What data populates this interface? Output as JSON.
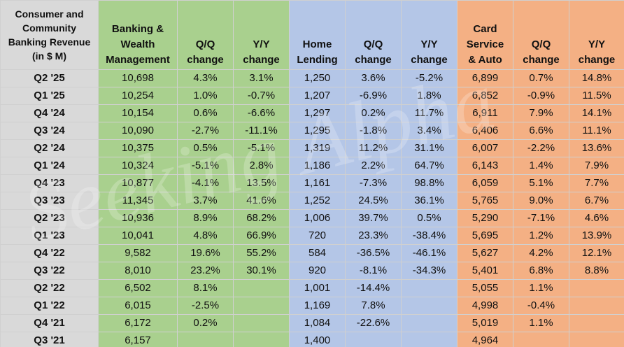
{
  "chart_data": {
    "type": "table",
    "header": {
      "label": "Consumer and Community Banking Revenue (in $ M)",
      "columns": [
        "Banking & Wealth Management",
        "Q/Q change",
        "Y/Y change",
        "Home Lending",
        "Q/Q change",
        "Y/Y change",
        "Card Service & Auto",
        "Q/Q change",
        "Y/Y change"
      ]
    },
    "rows": [
      {
        "period": "Q2 '25",
        "bwm": "10,698",
        "bwm_qq": "4.3%",
        "bwm_yy": "3.1%",
        "hl": "1,250",
        "hl_qq": "3.6%",
        "hl_yy": "-5.2%",
        "csa": "6,899",
        "csa_qq": "0.7%",
        "csa_yy": "14.8%"
      },
      {
        "period": "Q1 '25",
        "bwm": "10,254",
        "bwm_qq": "1.0%",
        "bwm_yy": "-0.7%",
        "hl": "1,207",
        "hl_qq": "-6.9%",
        "hl_yy": "1.8%",
        "csa": "6,852",
        "csa_qq": "-0.9%",
        "csa_yy": "11.5%"
      },
      {
        "period": "Q4 '24",
        "bwm": "10,154",
        "bwm_qq": "0.6%",
        "bwm_yy": "-6.6%",
        "hl": "1,297",
        "hl_qq": "0.2%",
        "hl_yy": "11.7%",
        "csa": "6,911",
        "csa_qq": "7.9%",
        "csa_yy": "14.1%"
      },
      {
        "period": "Q3 '24",
        "bwm": "10,090",
        "bwm_qq": "-2.7%",
        "bwm_yy": "-11.1%",
        "hl": "1,295",
        "hl_qq": "-1.8%",
        "hl_yy": "3.4%",
        "csa": "6,406",
        "csa_qq": "6.6%",
        "csa_yy": "11.1%"
      },
      {
        "period": "Q2 '24",
        "bwm": "10,375",
        "bwm_qq": "0.5%",
        "bwm_yy": "-5.1%",
        "hl": "1,319",
        "hl_qq": "11.2%",
        "hl_yy": "31.1%",
        "csa": "6,007",
        "csa_qq": "-2.2%",
        "csa_yy": "13.6%"
      },
      {
        "period": "Q1 '24",
        "bwm": "10,324",
        "bwm_qq": "-5.1%",
        "bwm_yy": "2.8%",
        "hl": "1,186",
        "hl_qq": "2.2%",
        "hl_yy": "64.7%",
        "csa": "6,143",
        "csa_qq": "1.4%",
        "csa_yy": "7.9%"
      },
      {
        "period": "Q4 '23",
        "bwm": "10,877",
        "bwm_qq": "-4.1%",
        "bwm_yy": "13.5%",
        "hl": "1,161",
        "hl_qq": "-7.3%",
        "hl_yy": "98.8%",
        "csa": "6,059",
        "csa_qq": "5.1%",
        "csa_yy": "7.7%"
      },
      {
        "period": "Q3 '23",
        "bwm": "11,345",
        "bwm_qq": "3.7%",
        "bwm_yy": "41.6%",
        "hl": "1,252",
        "hl_qq": "24.5%",
        "hl_yy": "36.1%",
        "csa": "5,765",
        "csa_qq": "9.0%",
        "csa_yy": "6.7%"
      },
      {
        "period": "Q2 '23",
        "bwm": "10,936",
        "bwm_qq": "8.9%",
        "bwm_yy": "68.2%",
        "hl": "1,006",
        "hl_qq": "39.7%",
        "hl_yy": "0.5%",
        "csa": "5,290",
        "csa_qq": "-7.1%",
        "csa_yy": "4.6%"
      },
      {
        "period": "Q1 '23",
        "bwm": "10,041",
        "bwm_qq": "4.8%",
        "bwm_yy": "66.9%",
        "hl": "720",
        "hl_qq": "23.3%",
        "hl_yy": "-38.4%",
        "csa": "5,695",
        "csa_qq": "1.2%",
        "csa_yy": "13.9%"
      },
      {
        "period": "Q4 '22",
        "bwm": "9,582",
        "bwm_qq": "19.6%",
        "bwm_yy": "55.2%",
        "hl": "584",
        "hl_qq": "-36.5%",
        "hl_yy": "-46.1%",
        "csa": "5,627",
        "csa_qq": "4.2%",
        "csa_yy": "12.1%"
      },
      {
        "period": "Q3 '22",
        "bwm": "8,010",
        "bwm_qq": "23.2%",
        "bwm_yy": "30.1%",
        "hl": "920",
        "hl_qq": "-8.1%",
        "hl_yy": "-34.3%",
        "csa": "5,401",
        "csa_qq": "6.8%",
        "csa_yy": "8.8%"
      },
      {
        "period": "Q2 '22",
        "bwm": "6,502",
        "bwm_qq": "8.1%",
        "bwm_yy": "",
        "hl": "1,001",
        "hl_qq": "-14.4%",
        "hl_yy": "",
        "csa": "5,055",
        "csa_qq": "1.1%",
        "csa_yy": ""
      },
      {
        "period": "Q1 '22",
        "bwm": "6,015",
        "bwm_qq": "-2.5%",
        "bwm_yy": "",
        "hl": "1,169",
        "hl_qq": "7.8%",
        "hl_yy": "",
        "csa": "4,998",
        "csa_qq": "-0.4%",
        "csa_yy": ""
      },
      {
        "period": "Q4 '21",
        "bwm": "6,172",
        "bwm_qq": "0.2%",
        "bwm_yy": "",
        "hl": "1,084",
        "hl_qq": "-22.6%",
        "hl_yy": "",
        "csa": "5,019",
        "csa_qq": "1.1%",
        "csa_yy": ""
      },
      {
        "period": "Q3 '21",
        "bwm": "6,157",
        "bwm_qq": "",
        "bwm_yy": "",
        "hl": "1,400",
        "hl_qq": "",
        "hl_yy": "",
        "csa": "4,964",
        "csa_qq": "",
        "csa_yy": ""
      }
    ],
    "colors": {
      "label": "#d9d9d9",
      "bwm": "#a9d08e",
      "hl": "#b4c6e7",
      "csa": "#f4b084"
    }
  },
  "watermark": "Seeking Alpha"
}
